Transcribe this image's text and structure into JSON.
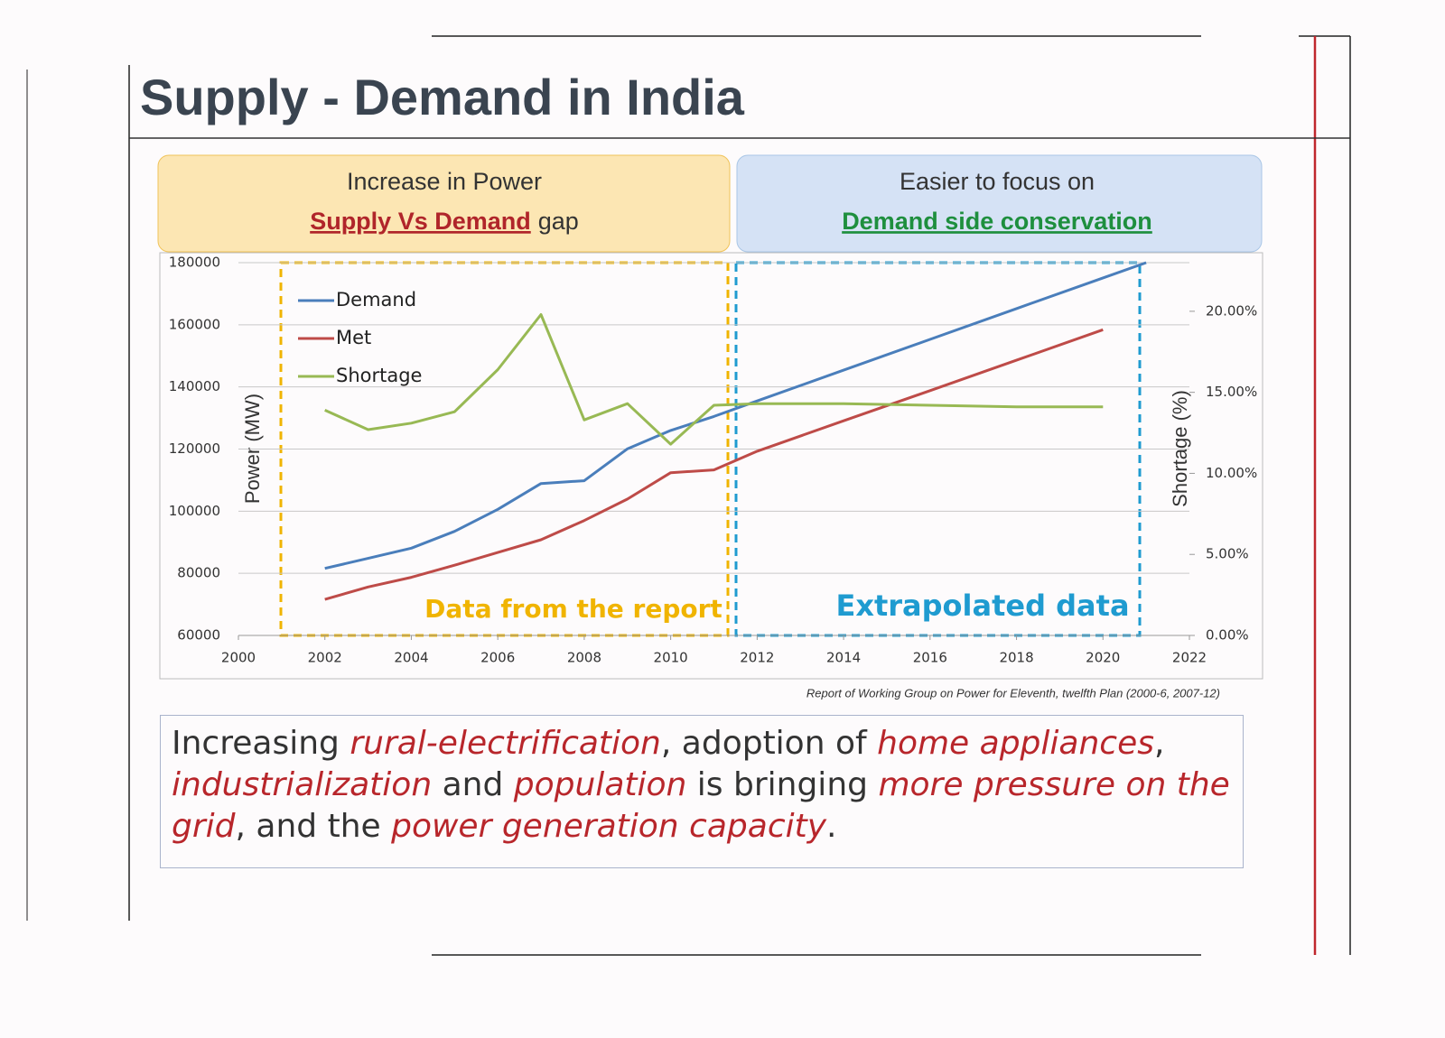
{
  "header": {
    "title": "Supply - Demand in India"
  },
  "callouts": [
    {
      "line1": "Increase in Power",
      "highlight": "Supply Vs Demand",
      "tail": "gap"
    },
    {
      "line1": "Easier to focus on",
      "highlight": "Demand side conservation"
    }
  ],
  "chart_data": {
    "type": "line",
    "x": [
      2002,
      2003,
      2004,
      2005,
      2006,
      2007,
      2008,
      2009,
      2010,
      2011,
      2012,
      2014,
      2016,
      2018,
      2020,
      2021
    ],
    "xlim": [
      2000,
      2022
    ],
    "xticks": [
      2000,
      2002,
      2004,
      2006,
      2008,
      2010,
      2012,
      2014,
      2016,
      2018,
      2020,
      2022
    ],
    "ylim": [
      60000,
      180000
    ],
    "yticks": [
      60000,
      80000,
      100000,
      120000,
      140000,
      160000,
      180000
    ],
    "y2lim": [
      0,
      23
    ],
    "y2ticks": [
      {
        "value": 0,
        "label": "0.00%"
      },
      {
        "value": 5,
        "label": "5.00%"
      },
      {
        "value": 10,
        "label": "10.00%"
      },
      {
        "value": 15,
        "label": "15.00%"
      },
      {
        "value": 20,
        "label": "20.00%"
      }
    ],
    "ylabel": "Power (MW)",
    "y2label": "Shortage (%)",
    "grid": true,
    "legend": "upper left",
    "series": [
      {
        "name": "Demand",
        "color": "#4a7ebb",
        "values": [
          81600,
          84800,
          88100,
          93500,
          100600,
          108900,
          109800,
          120100,
          126000,
          130500,
          135500,
          145400,
          155300,
          165200,
          175100,
          180000
        ]
      },
      {
        "name": "Met",
        "color": "#be4b48",
        "values": [
          71600,
          75600,
          78700,
          82600,
          86700,
          90800,
          97000,
          103900,
          112400,
          113300,
          119300,
          129100,
          138800,
          148600,
          158400,
          null
        ]
      },
      {
        "name": "Shortage",
        "color": "#98b954",
        "axis": "y2",
        "values": [
          13.9,
          12.7,
          13.1,
          13.8,
          16.4,
          19.8,
          13.3,
          14.3,
          11.8,
          14.2,
          14.3,
          14.3,
          14.2,
          14.1,
          14.1,
          null
        ]
      }
    ],
    "annotations": [
      "Data from the report",
      "Extrapolated data"
    ],
    "source": "Report of Working Group on Power for Eleventh, twelfth Plan (2000-6, 2007-12)"
  },
  "paragraph": [
    {
      "text": "Increasing ",
      "em": false
    },
    {
      "text": "rural-electrification",
      "em": true
    },
    {
      "text": ", adoption of ",
      "em": false
    },
    {
      "text": "home appliances",
      "em": true
    },
    {
      "text": ", ",
      "em": false
    },
    {
      "text": "industrialization",
      "em": true
    },
    {
      "text": " and ",
      "em": false
    },
    {
      "text": "population",
      "em": true
    },
    {
      "text": " is bringing ",
      "em": false
    },
    {
      "text": "more pressure on the grid",
      "em": true
    },
    {
      "text": ", and the ",
      "em": false
    },
    {
      "text": "power generation capacity",
      "em": true
    },
    {
      "text": ".",
      "em": false
    }
  ]
}
